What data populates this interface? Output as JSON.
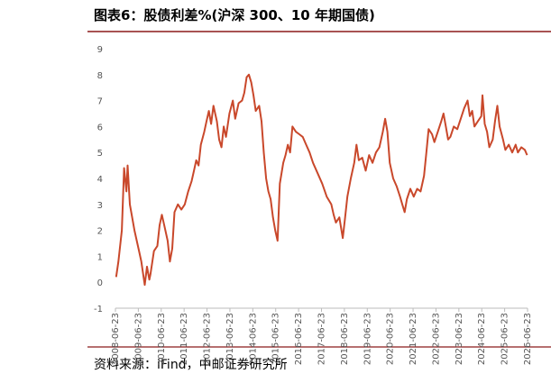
{
  "chart_data": {
    "type": "line",
    "title": "图表6：股债利差%(沪深 300、10 年期国债)",
    "source": "资料来源：iFind，中邮证券研究所",
    "color": "#c9482b",
    "xlim": [
      2008.47,
      2026.47
    ],
    "xticks": [
      {
        "value": 2008.47,
        "label": "2008-06-23"
      },
      {
        "value": 2009.47,
        "label": "2009-06-23"
      },
      {
        "value": 2010.47,
        "label": "2010-06-23"
      },
      {
        "value": 2011.47,
        "label": "2011-06-23"
      },
      {
        "value": 2012.47,
        "label": "2012-06-23"
      },
      {
        "value": 2013.47,
        "label": "2013-06-23"
      },
      {
        "value": 2014.47,
        "label": "2014-06-23"
      },
      {
        "value": 2015.47,
        "label": "2015-06-23"
      },
      {
        "value": 2016.47,
        "label": "2016-06-23"
      },
      {
        "value": 2017.47,
        "label": "2017-06-23"
      },
      {
        "value": 2018.47,
        "label": "2018-06-23"
      },
      {
        "value": 2019.47,
        "label": "2019-06-23"
      },
      {
        "value": 2020.47,
        "label": "2020-06-23"
      },
      {
        "value": 2021.47,
        "label": "2021-06-23"
      },
      {
        "value": 2022.47,
        "label": "2022-06-23"
      },
      {
        "value": 2023.47,
        "label": "2023-06-23"
      },
      {
        "value": 2024.47,
        "label": "2024-06-23"
      },
      {
        "value": 2025.47,
        "label": "2025-06-23"
      },
      {
        "value": 2026.47,
        "label": "2026-06-23"
      }
    ],
    "ylim": [
      -1,
      9
    ],
    "yticks": [
      -1,
      0,
      1,
      2,
      3,
      4,
      5,
      6,
      7,
      8,
      9
    ],
    "x": [
      2008.5,
      2008.6,
      2008.75,
      2008.85,
      2008.95,
      2009.0,
      2009.1,
      2009.3,
      2009.5,
      2009.6,
      2009.7,
      2009.75,
      2009.85,
      2009.95,
      2010.0,
      2010.15,
      2010.3,
      2010.4,
      2010.5,
      2010.6,
      2010.75,
      2010.85,
      2010.95,
      2011.05,
      2011.2,
      2011.35,
      2011.5,
      2011.65,
      2011.8,
      2011.9,
      2012.0,
      2012.1,
      2012.2,
      2012.35,
      2012.45,
      2012.55,
      2012.65,
      2012.75,
      2012.9,
      2013.0,
      2013.1,
      2013.2,
      2013.3,
      2013.45,
      2013.6,
      2013.7,
      2013.85,
      2014.0,
      2014.1,
      2014.2,
      2014.3,
      2014.4,
      2014.5,
      2014.6,
      2014.75,
      2014.85,
      2014.95,
      2015.05,
      2015.15,
      2015.25,
      2015.35,
      2015.45,
      2015.55,
      2015.65,
      2015.8,
      2015.9,
      2016.0,
      2016.1,
      2016.2,
      2016.35,
      2016.5,
      2016.65,
      2016.8,
      2016.95,
      2017.1,
      2017.3,
      2017.5,
      2017.7,
      2017.9,
      2018.0,
      2018.1,
      2018.25,
      2018.4,
      2018.5,
      2018.6,
      2018.75,
      2018.9,
      2019.0,
      2019.1,
      2019.25,
      2019.4,
      2019.55,
      2019.7,
      2019.85,
      2020.0,
      2020.15,
      2020.25,
      2020.35,
      2020.45,
      2020.6,
      2020.75,
      2020.9,
      2021.0,
      2021.1,
      2021.2,
      2021.35,
      2021.5,
      2021.65,
      2021.8,
      2021.95,
      2022.05,
      2022.15,
      2022.3,
      2022.4,
      2022.55,
      2022.7,
      2022.8,
      2022.9,
      2023.0,
      2023.1,
      2023.25,
      2023.4,
      2023.55,
      2023.7,
      2023.85,
      2023.95,
      2024.05,
      2024.15,
      2024.3,
      2024.45,
      2024.5,
      2024.6,
      2024.7,
      2024.8,
      2024.95,
      2025.05,
      2025.15,
      2025.25,
      2025.4,
      2025.5,
      2025.65,
      2025.8,
      2025.95,
      2026.05,
      2026.2,
      2026.35,
      2026.45
    ],
    "values": [
      0.2,
      0.8,
      2.0,
      4.4,
      3.5,
      4.5,
      3.0,
      2.0,
      1.2,
      0.8,
      0.2,
      -0.1,
      0.6,
      0.1,
      0.3,
      1.2,
      1.4,
      2.2,
      2.6,
      2.2,
      1.6,
      0.8,
      1.3,
      2.7,
      3.0,
      2.8,
      3.0,
      3.5,
      3.9,
      4.3,
      4.7,
      4.5,
      5.3,
      5.8,
      6.2,
      6.6,
      6.1,
      6.8,
      6.2,
      5.5,
      5.2,
      6.0,
      5.6,
      6.5,
      7.0,
      6.3,
      6.9,
      7.0,
      7.3,
      7.9,
      8.0,
      7.7,
      7.2,
      6.6,
      6.8,
      6.2,
      5.0,
      4.0,
      3.5,
      3.2,
      2.5,
      2.0,
      1.6,
      3.8,
      4.6,
      4.9,
      5.3,
      5.0,
      6.0,
      5.8,
      5.7,
      5.6,
      5.3,
      5.0,
      4.6,
      4.2,
      3.8,
      3.3,
      3.0,
      2.6,
      2.3,
      2.5,
      1.7,
      2.5,
      3.3,
      4.0,
      4.6,
      5.3,
      4.7,
      4.8,
      4.3,
      4.9,
      4.6,
      5.0,
      5.2,
      5.8,
      6.3,
      5.8,
      4.6,
      4.0,
      3.7,
      3.3,
      3.0,
      2.7,
      3.2,
      3.6,
      3.3,
      3.6,
      3.5,
      4.1,
      5.0,
      5.9,
      5.7,
      5.4,
      5.8,
      6.2,
      6.5,
      6.0,
      5.5,
      5.6,
      6.0,
      5.9,
      6.3,
      6.7,
      7.0,
      6.4,
      6.6,
      6.0,
      6.2,
      6.4,
      7.2,
      6.1,
      5.8,
      5.2,
      5.5,
      6.2,
      6.8,
      6.0,
      5.5,
      5.1,
      5.3,
      5.0,
      5.3,
      5.0,
      5.2,
      5.1,
      4.9
    ]
  }
}
